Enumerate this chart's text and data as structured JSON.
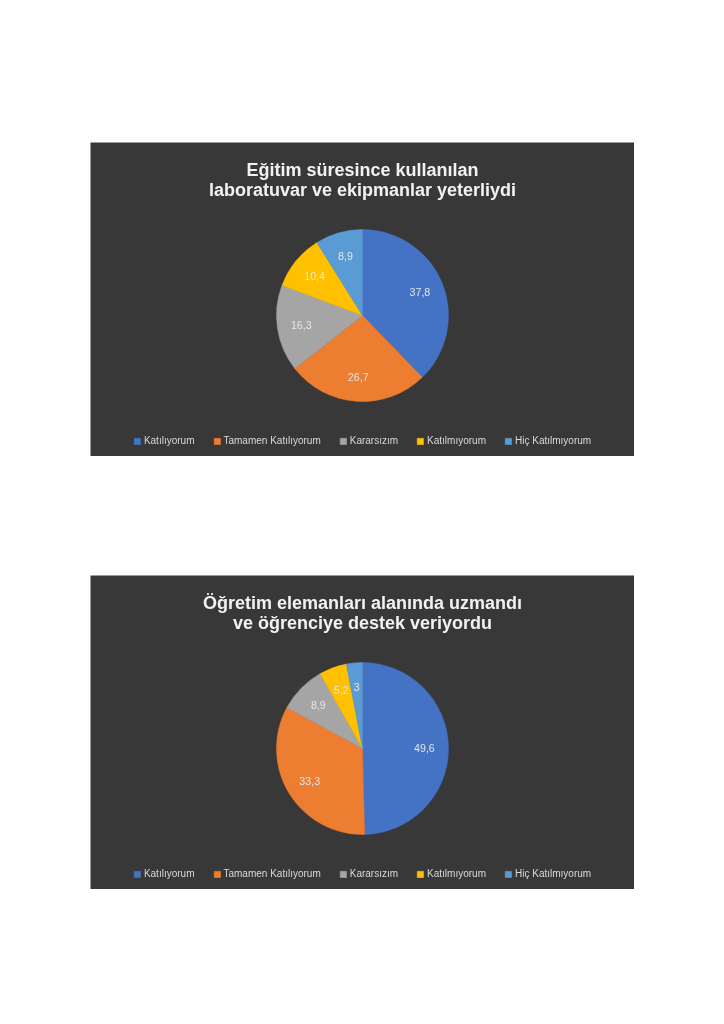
{
  "chart_data": [
    {
      "type": "pie",
      "title": "Eğitim süresince kullanılan laboratuvar ve ekipmanlar yeterliydi",
      "categories": [
        "Katılıyorum",
        "Tamamen Katılıyorum",
        "Kararsızım",
        "Katılmıyorum",
        "Hiç Katılmıyorum"
      ],
      "values": [
        37.8,
        26.7,
        16.3,
        10.4,
        8.9
      ],
      "value_labels": [
        "37,8",
        "26,7",
        "16,3",
        "10,4",
        "8,9"
      ],
      "colors": [
        "#4472c4",
        "#ed7d31",
        "#a5a5a5",
        "#ffc000",
        "#5b9bd5"
      ],
      "legend": "bottom"
    },
    {
      "type": "pie",
      "title": "Öğretim elemanları alanında uzmandı ve öğrenciye destek veriyordu",
      "categories": [
        "Katılıyorum",
        "Tamamen Katılıyorum",
        "Kararsızım",
        "Katılmıyorum",
        "Hiç Katılmıyorum"
      ],
      "values": [
        49.6,
        33.3,
        8.9,
        5.2,
        3
      ],
      "value_labels": [
        "49,6",
        "33,3",
        "8,9",
        "5,2",
        "3"
      ],
      "colors": [
        "#4472c4",
        "#ed7d31",
        "#a5a5a5",
        "#ffc000",
        "#5b9bd5"
      ],
      "legend": "bottom"
    }
  ]
}
